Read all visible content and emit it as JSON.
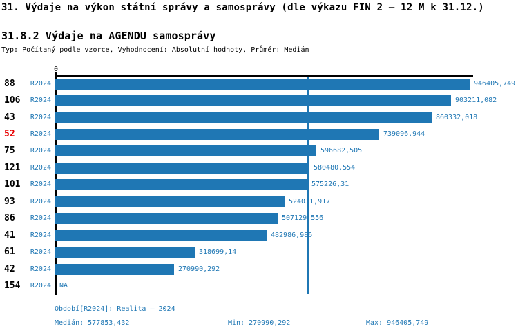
{
  "header": {
    "title": "31. Výdaje na výkon státní správy a samosprávy (dle výkazu FIN 2 – 12 M k 31.12.)",
    "subtitle": "31.8.2 Výdaje na AGENDU samosprávy",
    "meta": "Typ: Počítaný podle vzorce, Vyhodnocení: Absolutní hodnoty, Průměr: Medián"
  },
  "colors": {
    "bar": "#1f77b4",
    "value_label": "#1f77b4",
    "period_label": "#1f77b4",
    "highlight_row_id": "#e80000",
    "axis": "#000000",
    "median_line": "#1f77b4"
  },
  "chart_data": {
    "type": "bar",
    "orientation": "horizontal",
    "axis": {
      "tick_label": "0",
      "xlim": [
        0,
        953000
      ],
      "gridlines": false
    },
    "median_value": 577853.432,
    "rows": [
      {
        "id": "88",
        "period": "R2024",
        "value": 946405.749,
        "value_label": "946405,749",
        "highlight": false
      },
      {
        "id": "106",
        "period": "R2024",
        "value": 903211.082,
        "value_label": "903211,082",
        "highlight": false
      },
      {
        "id": "43",
        "period": "R2024",
        "value": 860332.018,
        "value_label": "860332,018",
        "highlight": false
      },
      {
        "id": "52",
        "period": "R2024",
        "value": 739096.944,
        "value_label": "739096,944",
        "highlight": true
      },
      {
        "id": "75",
        "period": "R2024",
        "value": 596682.505,
        "value_label": "596682,505",
        "highlight": false
      },
      {
        "id": "121",
        "period": "R2024",
        "value": 580480.554,
        "value_label": "580480,554",
        "highlight": false
      },
      {
        "id": "101",
        "period": "R2024",
        "value": 575226.31,
        "value_label": "575226,31",
        "highlight": false
      },
      {
        "id": "93",
        "period": "R2024",
        "value": 524031.917,
        "value_label": "524031,917",
        "highlight": false
      },
      {
        "id": "86",
        "period": "R2024",
        "value": 507129.556,
        "value_label": "507129,556",
        "highlight": false
      },
      {
        "id": "41",
        "period": "R2024",
        "value": 482986.986,
        "value_label": "482986,986",
        "highlight": false
      },
      {
        "id": "61",
        "period": "R2024",
        "value": 318699.14,
        "value_label": "318699,14",
        "highlight": false
      },
      {
        "id": "42",
        "period": "R2024",
        "value": 270990.292,
        "value_label": "270990,292",
        "highlight": false
      },
      {
        "id": "154",
        "period": "R2024",
        "value": null,
        "value_label": "NA",
        "highlight": false
      }
    ],
    "footer": {
      "period_line": "Období[R2024]: Realita – 2024",
      "median_line": "Medián: 577853,432",
      "min_line": "Min: 270990,292",
      "max_line": "Max: 946405,749"
    }
  }
}
